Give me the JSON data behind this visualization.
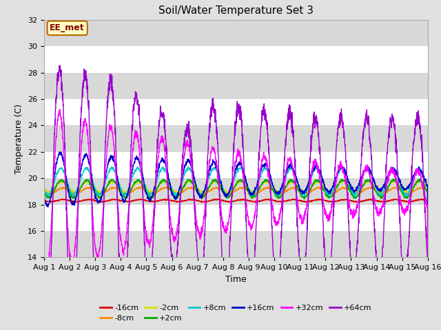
{
  "title": "Soil/Water Temperature Set 3",
  "xlabel": "Time",
  "ylabel": "Temperature (C)",
  "ylim": [
    14,
    32
  ],
  "yticks": [
    14,
    16,
    18,
    20,
    22,
    24,
    26,
    28,
    30,
    32
  ],
  "bg_color": "#e0e0e0",
  "plot_bg_color": "#ffffff",
  "stripe_color": "#d8d8d8",
  "annotation_text": "EE_met",
  "annotation_bg": "#ffffc0",
  "annotation_border": "#bb6600",
  "annotation_text_color": "#880000",
  "series_names": [
    "-16cm",
    "-8cm",
    "-2cm",
    "+2cm",
    "+8cm",
    "+16cm",
    "+32cm",
    "+64cm"
  ],
  "series_colors": [
    "#dd0000",
    "#ff8800",
    "#dddd00",
    "#00aa00",
    "#00cccc",
    "#0000cc",
    "#ff00ff",
    "#9900cc"
  ],
  "series_base": [
    18.3,
    19.0,
    19.3,
    19.2,
    19.7,
    19.9,
    19.0,
    19.0
  ],
  "n_days": 15,
  "pts_per_day": 144,
  "xtick_labels": [
    "Aug 1",
    "Aug 2",
    "Aug 3",
    "Aug 4",
    "Aug 5",
    "Aug 6",
    "Aug 7",
    "Aug 8",
    "Aug 9",
    "Aug 10",
    "Aug 11",
    "Aug 12",
    "Aug 13",
    "Aug 14",
    "Aug 15",
    "Aug 16"
  ]
}
